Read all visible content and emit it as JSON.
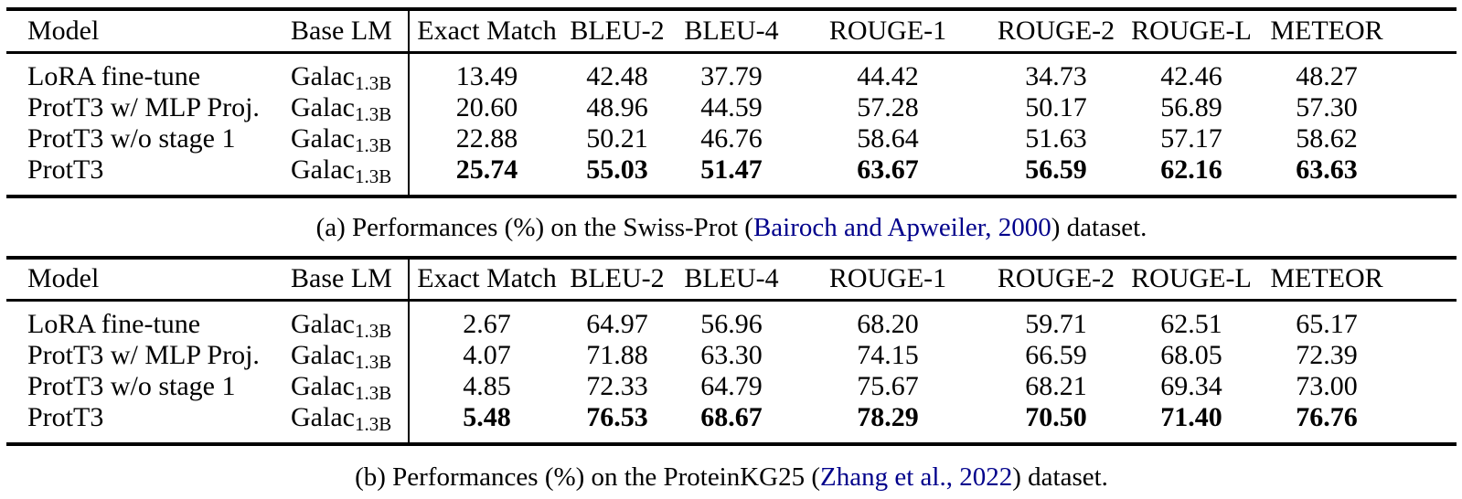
{
  "citation_color": "#00008b",
  "columns": [
    "Model",
    "Base LM",
    "Exact Match",
    "BLEU-2",
    "BLEU-4",
    "ROUGE-1",
    "ROUGE-2",
    "ROUGE-L",
    "METEOR"
  ],
  "tables": [
    {
      "id": "a",
      "caption": {
        "prefix": "(a) Performances (%) on the Swiss-Prot (",
        "citation": "Bairoch and Apweiler, 2000",
        "suffix": ") dataset."
      },
      "rows": [
        {
          "model": "LoRA fine-tune",
          "base_lm": {
            "main": "Galac",
            "sub": "1.3B"
          },
          "bold_values": false,
          "values": [
            "13.49",
            "42.48",
            "37.79",
            "44.42",
            "34.73",
            "42.46",
            "48.27"
          ]
        },
        {
          "model": "ProtT3 w/ MLP Proj.",
          "base_lm": {
            "main": "Galac",
            "sub": "1.3B"
          },
          "bold_values": false,
          "values": [
            "20.60",
            "48.96",
            "44.59",
            "57.28",
            "50.17",
            "56.89",
            "57.30"
          ]
        },
        {
          "model": "ProtT3 w/o stage 1",
          "base_lm": {
            "main": "Galac",
            "sub": "1.3B"
          },
          "bold_values": false,
          "values": [
            "22.88",
            "50.21",
            "46.76",
            "58.64",
            "51.63",
            "57.17",
            "58.62"
          ]
        },
        {
          "model": "ProtT3",
          "base_lm": {
            "main": "Galac",
            "sub": "1.3B"
          },
          "bold_values": true,
          "values": [
            "25.74",
            "55.03",
            "51.47",
            "63.67",
            "56.59",
            "62.16",
            "63.63"
          ]
        }
      ]
    },
    {
      "id": "b",
      "caption": {
        "prefix": "(b) Performances (%) on the ProteinKG25 (",
        "citation": "Zhang et al., 2022",
        "suffix": ") dataset."
      },
      "rows": [
        {
          "model": "LoRA fine-tune",
          "base_lm": {
            "main": "Galac",
            "sub": "1.3B"
          },
          "bold_values": false,
          "values": [
            "2.67",
            "64.97",
            "56.96",
            "68.20",
            "59.71",
            "62.51",
            "65.17"
          ]
        },
        {
          "model": "ProtT3 w/ MLP Proj.",
          "base_lm": {
            "main": "Galac",
            "sub": "1.3B"
          },
          "bold_values": false,
          "values": [
            "4.07",
            "71.88",
            "63.30",
            "74.15",
            "66.59",
            "68.05",
            "72.39"
          ]
        },
        {
          "model": "ProtT3 w/o stage 1",
          "base_lm": {
            "main": "Galac",
            "sub": "1.3B"
          },
          "bold_values": false,
          "values": [
            "4.85",
            "72.33",
            "64.79",
            "75.67",
            "68.21",
            "69.34",
            "73.00"
          ]
        },
        {
          "model": "ProtT3",
          "base_lm": {
            "main": "Galac",
            "sub": "1.3B"
          },
          "bold_values": true,
          "values": [
            "5.48",
            "76.53",
            "68.67",
            "78.29",
            "70.50",
            "71.40",
            "76.76"
          ]
        }
      ]
    }
  ]
}
